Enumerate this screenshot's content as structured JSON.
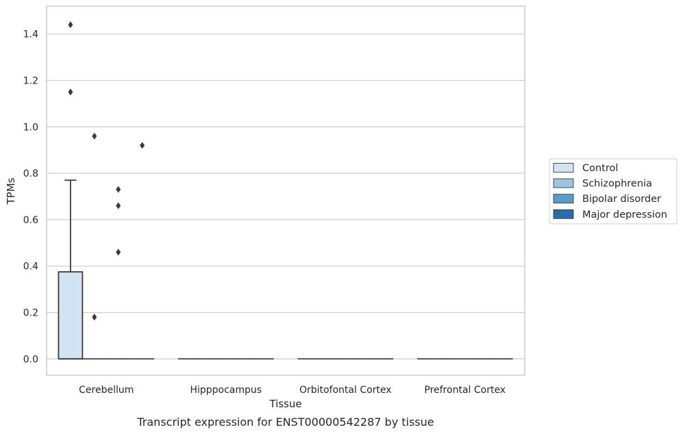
{
  "chart_data": {
    "type": "box",
    "caption": "Transcript expression for ENST00000542287 by tissue",
    "xlabel": "Tissue",
    "ylabel": "TPMs",
    "ylim": [
      -0.07,
      1.52
    ],
    "yticks": [
      0.0,
      0.2,
      0.4,
      0.6,
      0.8,
      1.0,
      1.2,
      1.4
    ],
    "grid": true,
    "legend_position": "right",
    "categories": [
      "Cerebellum",
      "Hipppocampus",
      "Orbitofontal Cortex",
      "Prefrontal Cortex"
    ],
    "series": [
      {
        "name": "Control",
        "color": "#d3e3f2",
        "boxes": [
          {
            "category": "Cerebellum",
            "min": 0.0,
            "q1": 0.0,
            "median": 0.0,
            "q3": 0.375,
            "max": 0.77,
            "outliers": [
              1.44,
              1.15
            ]
          },
          {
            "category": "Hipppocampus",
            "min": 0.0,
            "q1": 0.0,
            "median": 0.0,
            "q3": 0.0,
            "max": 0.0,
            "outliers": []
          },
          {
            "category": "Orbitofontal Cortex",
            "min": 0.0,
            "q1": 0.0,
            "median": 0.0,
            "q3": 0.0,
            "max": 0.0,
            "outliers": []
          },
          {
            "category": "Prefrontal Cortex",
            "min": 0.0,
            "q1": 0.0,
            "median": 0.0,
            "q3": 0.0,
            "max": 0.0,
            "outliers": []
          }
        ]
      },
      {
        "name": "Schizophrenia",
        "color": "#9dc3de",
        "boxes": [
          {
            "category": "Cerebellum",
            "min": 0.0,
            "q1": 0.0,
            "median": 0.0,
            "q3": 0.0,
            "max": 0.0,
            "outliers": [
              0.96,
              0.18
            ]
          },
          {
            "category": "Hipppocampus",
            "min": 0.0,
            "q1": 0.0,
            "median": 0.0,
            "q3": 0.0,
            "max": 0.0,
            "outliers": []
          },
          {
            "category": "Orbitofontal Cortex",
            "min": 0.0,
            "q1": 0.0,
            "median": 0.0,
            "q3": 0.0,
            "max": 0.0,
            "outliers": []
          },
          {
            "category": "Prefrontal Cortex",
            "min": 0.0,
            "q1": 0.0,
            "median": 0.0,
            "q3": 0.0,
            "max": 0.0,
            "outliers": []
          }
        ]
      },
      {
        "name": "Bipolar disorder",
        "color": "#5a9ac9",
        "boxes": [
          {
            "category": "Cerebellum",
            "min": 0.0,
            "q1": 0.0,
            "median": 0.0,
            "q3": 0.0,
            "max": 0.0,
            "outliers": [
              0.73,
              0.66,
              0.46
            ]
          },
          {
            "category": "Hipppocampus",
            "min": 0.0,
            "q1": 0.0,
            "median": 0.0,
            "q3": 0.0,
            "max": 0.0,
            "outliers": []
          },
          {
            "category": "Orbitofontal Cortex",
            "min": 0.0,
            "q1": 0.0,
            "median": 0.0,
            "q3": 0.0,
            "max": 0.0,
            "outliers": []
          },
          {
            "category": "Prefrontal Cortex",
            "min": 0.0,
            "q1": 0.0,
            "median": 0.0,
            "q3": 0.0,
            "max": 0.0,
            "outliers": []
          }
        ]
      },
      {
        "name": "Major depression",
        "color": "#2b6ba8",
        "boxes": [
          {
            "category": "Cerebellum",
            "min": 0.0,
            "q1": 0.0,
            "median": 0.0,
            "q3": 0.0,
            "max": 0.0,
            "outliers": [
              0.92
            ]
          },
          {
            "category": "Hipppocampus",
            "min": 0.0,
            "q1": 0.0,
            "median": 0.0,
            "q3": 0.0,
            "max": 0.0,
            "outliers": []
          },
          {
            "category": "Orbitofontal Cortex",
            "min": 0.0,
            "q1": 0.0,
            "median": 0.0,
            "q3": 0.0,
            "max": 0.0,
            "outliers": []
          },
          {
            "category": "Prefrontal Cortex",
            "min": 0.0,
            "q1": 0.0,
            "median": 0.0,
            "q3": 0.0,
            "max": 0.0,
            "outliers": []
          }
        ]
      }
    ],
    "colors": {
      "grid": "#cccccc",
      "frame": "#cccccc",
      "stroke": "#3a3a3a",
      "text": "#262626"
    }
  }
}
